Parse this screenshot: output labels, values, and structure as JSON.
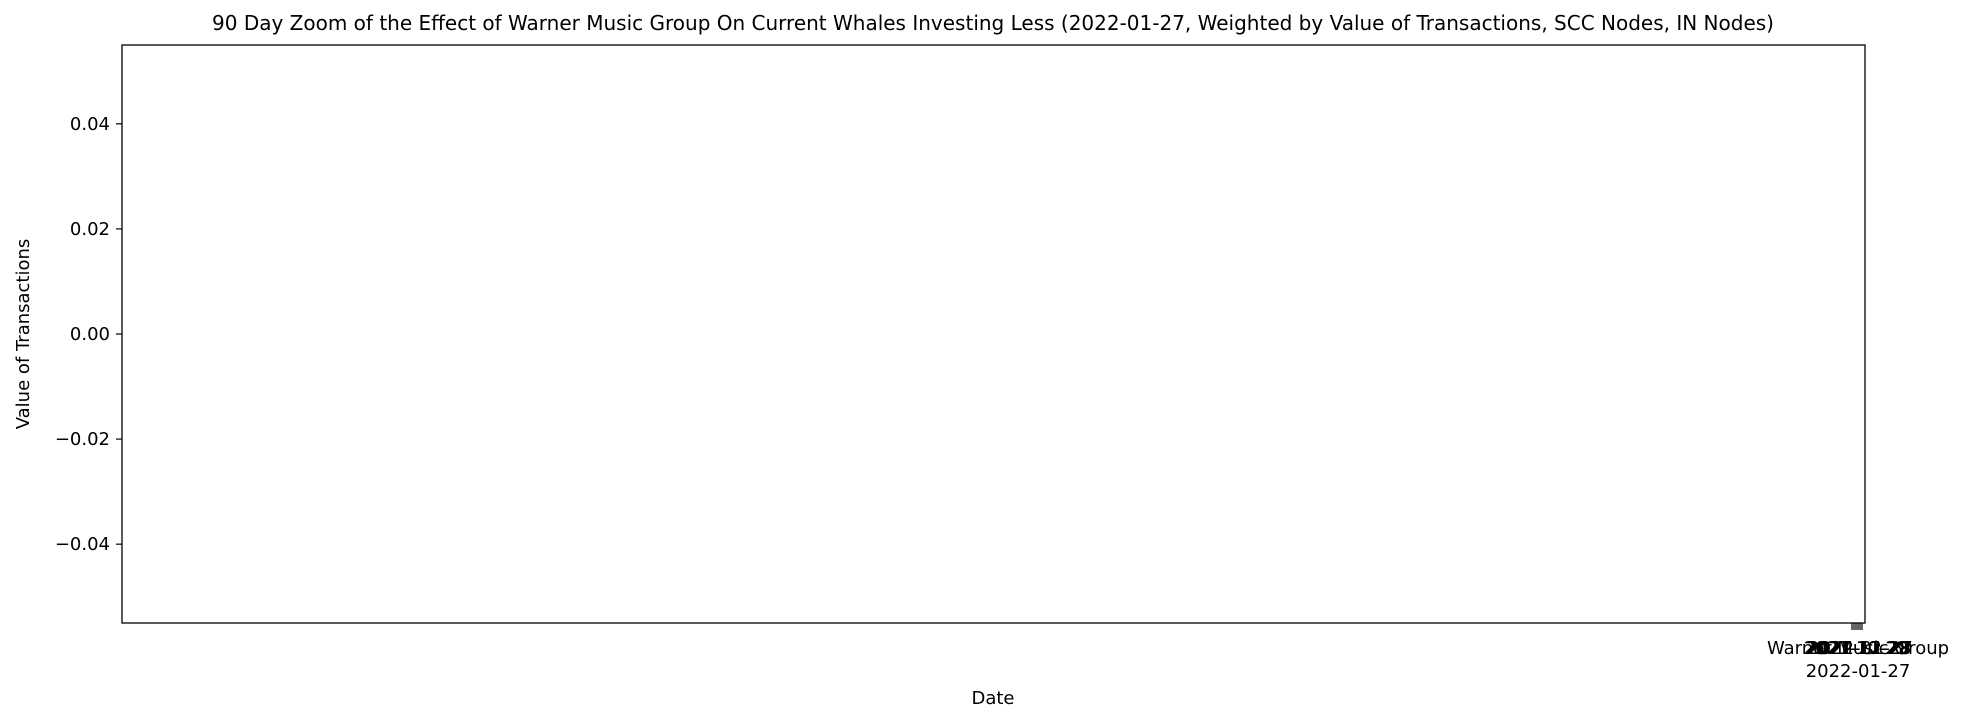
{
  "chart_data": {
    "type": "line",
    "title": "90 Day Zoom of the Effect of Warner Music Group On Current Whales Investing Less (2022-01-27, Weighted by Value of Transactions, SCC Nodes, IN Nodes)",
    "xlabel": "Date",
    "ylabel": "Value of Transactions",
    "ylim": [
      -0.055,
      0.055
    ],
    "yticks": [
      {
        "value": 0.04,
        "label": "0.04"
      },
      {
        "value": 0.02,
        "label": "0.02"
      },
      {
        "value": 0.0,
        "label": "0.00"
      },
      {
        "value": -0.02,
        "label": "−0.02"
      },
      {
        "value": -0.04,
        "label": "−0.04"
      }
    ],
    "series": [
      {
        "values": []
      }
    ],
    "annotations": [
      {
        "text": "Warner Music Group",
        "date": "2022-01-27"
      },
      {
        "text": "2022-01-27",
        "date": "2022-01-27"
      }
    ],
    "overlapping_tick_labels": [
      "2021-10-29",
      "2021-11-28",
      "2021-12-28",
      "2022-01-27"
    ],
    "grid": false,
    "legend": "none"
  }
}
